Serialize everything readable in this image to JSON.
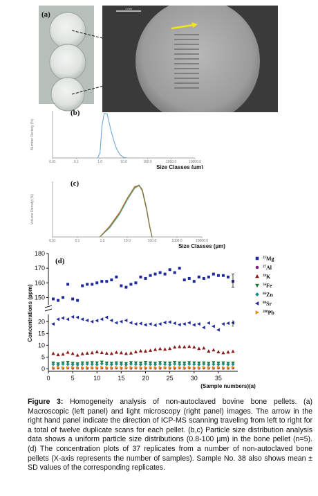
{
  "figure": {
    "panel_a_label": "(a)",
    "panel_b_label": "(b)",
    "panel_c_label": "(c)",
    "panel_d_label": "(d)",
    "scale_bar_label": "1 mm",
    "caption_title": "Figure 3:",
    "caption_text": " Homogeneity analysis of non-autoclaved bovine bone pellets. (a) Macroscopic (left panel) and light microscopy (right panel) images. The arrow in the right hand panel indicate the direction of ICP-MS scanning traveling from left to right for a total of twelve duplicate scans for each pellet. (b,c) Particle size distribution analysis data shows a uniform particle size distributions (0.8-100 µm) in the bone pellet (n=5). (d) The concentration plots of 37 replicates from a number of non-autoclaved bone pellets (X-axis represents the number of samples). Sample No. 38 also shows mean ± SD values of the corresponding replicates."
  },
  "chart_data": [
    {
      "type": "line",
      "panel": "(b)",
      "xlabel": "Size Classes (µm)",
      "ylabel": "Number Density (%)",
      "xscale": "log",
      "xlim": [
        0.01,
        10000
      ],
      "x_ticks": [
        "0.01",
        "0.1",
        "1.0",
        "10.0",
        "100.0",
        "1000.0",
        "10000.0"
      ],
      "series": [
        {
          "x": [
            0.8,
            1.0,
            1.2,
            1.5,
            2.0,
            2.5,
            3,
            4,
            5,
            7,
            10,
            14
          ],
          "values": [
            0,
            2,
            12,
            17,
            16.8,
            13,
            10,
            6,
            3.5,
            1.2,
            0.2,
            0
          ]
        }
      ]
    },
    {
      "type": "line",
      "panel": "(c)",
      "xlabel": "Size Classes (µm)",
      "ylabel": "Volume Density (%)",
      "xscale": "log",
      "xlim": [
        0.01,
        10000
      ],
      "x_ticks": [
        "0.01",
        "0.1",
        "1.0",
        "10.0",
        "100.0",
        "1000.0",
        "10000.0"
      ],
      "series": [
        {
          "x": [
            0.8,
            2,
            5,
            10,
            20,
            30,
            40,
            60,
            80,
            100
          ],
          "values": [
            0,
            1.5,
            3.5,
            5.5,
            7.2,
            7.5,
            6.8,
            4,
            1.5,
            0
          ]
        },
        {
          "x": [
            0.8,
            2,
            5,
            10,
            20,
            30,
            40,
            60,
            80,
            100
          ],
          "values": [
            0,
            1.3,
            3.3,
            5.3,
            7.0,
            7.4,
            6.9,
            4.2,
            1.6,
            0
          ]
        },
        {
          "x": [
            0.8,
            2,
            5,
            10,
            20,
            30,
            40,
            60,
            80,
            100
          ],
          "values": [
            0,
            1.6,
            3.6,
            5.6,
            7.3,
            7.45,
            6.6,
            3.9,
            1.4,
            0
          ]
        },
        {
          "x": [
            0.8,
            2,
            5,
            10,
            20,
            30,
            40,
            60,
            80,
            100
          ],
          "values": [
            0,
            1.4,
            3.4,
            5.4,
            7.1,
            7.5,
            6.7,
            4.1,
            1.5,
            0
          ]
        },
        {
          "x": [
            0.8,
            2,
            5,
            10,
            20,
            30,
            40,
            60,
            80,
            100
          ],
          "values": [
            0,
            1.5,
            3.5,
            5.5,
            7.2,
            7.4,
            6.8,
            4.0,
            1.5,
            0
          ]
        }
      ]
    },
    {
      "type": "scatter",
      "panel": "(d)",
      "xlabel": "(Sample numbers)(a)",
      "ylabel": "Concentrations (ppm)",
      "x_ticks": [
        0,
        5,
        10,
        15,
        20,
        25,
        30,
        35
      ],
      "y_ticks_upper": [
        150,
        160,
        170,
        180
      ],
      "y_ticks_lower": [
        0,
        5,
        10,
        15,
        20
      ],
      "legend_placement": "right",
      "x": [
        1,
        2,
        3,
        4,
        5,
        6,
        7,
        8,
        9,
        10,
        11,
        12,
        13,
        14,
        15,
        16,
        17,
        18,
        19,
        20,
        21,
        22,
        23,
        24,
        25,
        26,
        27,
        28,
        29,
        30,
        31,
        32,
        33,
        34,
        35,
        36,
        37,
        38
      ],
      "series": [
        {
          "name": "25Mg",
          "sup": "25",
          "el": "Mg",
          "color": "#1f2a9a",
          "marker": "square",
          "values": [
            149,
            148,
            150,
            159,
            149,
            148,
            158,
            159,
            159,
            160,
            161,
            161,
            162,
            164,
            158,
            157,
            159,
            160,
            164,
            163,
            165,
            166,
            167,
            166,
            169,
            167,
            170,
            162,
            163,
            161,
            164,
            163,
            164,
            166,
            165,
            165,
            164,
            161
          ]
        },
        {
          "name": "27Al",
          "sup": "27",
          "el": "Al",
          "color": "#7a1f7a",
          "marker": "circle",
          "values": [
            0.3,
            0.4,
            0.3,
            0.4,
            0.3,
            0.4,
            0.3,
            0.3,
            0.4,
            0.3,
            0.4,
            0.3,
            0.3,
            0.4,
            0.3,
            0.4,
            0.3,
            0.4,
            0.3,
            0.3,
            0.4,
            0.3,
            0.3,
            0.4,
            0.3,
            0.3,
            0.4,
            0.3,
            0.4,
            0.3,
            0.3,
            0.4,
            0.3,
            0.3,
            0.4,
            0.3,
            0.3,
            0.4
          ]
        },
        {
          "name": "39K",
          "sup": "39",
          "el": "K",
          "color": "#8b1a1a",
          "marker": "triangle-up",
          "values": [
            6.5,
            6,
            6.2,
            7,
            6.5,
            5.8,
            6.4,
            6.6,
            6.8,
            7.2,
            6.9,
            6.6,
            6.5,
            7,
            6.8,
            6.5,
            6.7,
            7.2,
            7.6,
            7.5,
            7.8,
            8.2,
            8.5,
            8.3,
            8.6,
            9.2,
            9.4,
            9.3,
            9.5,
            9.2,
            8.6,
            8.8,
            7.5,
            8,
            7.2,
            6.8,
            7.1,
            7.4
          ]
        },
        {
          "name": "56Fe",
          "sup": "56",
          "el": "Fe",
          "color": "#1a7a2a",
          "marker": "triangle-down",
          "values": [
            2.5,
            2.2,
            2.6,
            2.8,
            2.4,
            2.2,
            2.6,
            2.5,
            2.7,
            2.6,
            2.9,
            2.5,
            2.4,
            2.6,
            2.5,
            2.3,
            2.7,
            2.6,
            2.5,
            2.8,
            2.6,
            2.4,
            2.7,
            2.6,
            2.5,
            2.8,
            2.6,
            2.5,
            2.7,
            2.6,
            2.5,
            2.6,
            2.4,
            2.7,
            2.5,
            2.6,
            2.4,
            2.5
          ]
        },
        {
          "name": "66Zn",
          "sup": "66",
          "el": "Zn",
          "color": "#1a8a8a",
          "marker": "diamond",
          "values": [
            2,
            1.8,
            2.1,
            2,
            1.9,
            1.8,
            2,
            2.1,
            2,
            1.9,
            2.2,
            2,
            1.9,
            2.1,
            2,
            1.8,
            2.1,
            2,
            1.9,
            2.1,
            2,
            1.9,
            2.1,
            2,
            1.8,
            2.1,
            2,
            1.9,
            2.1,
            2,
            1.9,
            2.1,
            1.8,
            2,
            1.9,
            2.1,
            1.9,
            2
          ]
        },
        {
          "name": "88Sr",
          "sup": "88",
          "el": "Sr",
          "color": "#1f2a9a",
          "marker": "triangle-left",
          "values": [
            19,
            21,
            21.5,
            21,
            22,
            21.8,
            21,
            20.5,
            20,
            20.4,
            21,
            21.8,
            20.5,
            19.5,
            20,
            20.5,
            19.5,
            19,
            19.2,
            18.6,
            19,
            18.5,
            19,
            19.6,
            19.8,
            19.3,
            18.7,
            19,
            19.5,
            18.6,
            19,
            17.5,
            19.4,
            18,
            16.5,
            19,
            19.3,
            19.5
          ]
        },
        {
          "name": "208Pb",
          "sup": "208",
          "el": "Pb",
          "color": "#e08a1a",
          "marker": "triangle-right",
          "values": [
            0.5,
            0.6,
            0.5,
            0.5,
            0.6,
            0.5,
            0.5,
            0.6,
            0.5,
            0.5,
            0.6,
            0.5,
            0.5,
            0.6,
            0.5,
            0.5,
            0.6,
            0.5,
            0.5,
            0.6,
            0.5,
            0.5,
            0.6,
            0.5,
            0.5,
            0.6,
            0.5,
            0.5,
            0.6,
            0.5,
            0.5,
            0.6,
            0.5,
            0.5,
            0.6,
            0.5,
            0.5,
            0.6
          ]
        }
      ]
    }
  ]
}
